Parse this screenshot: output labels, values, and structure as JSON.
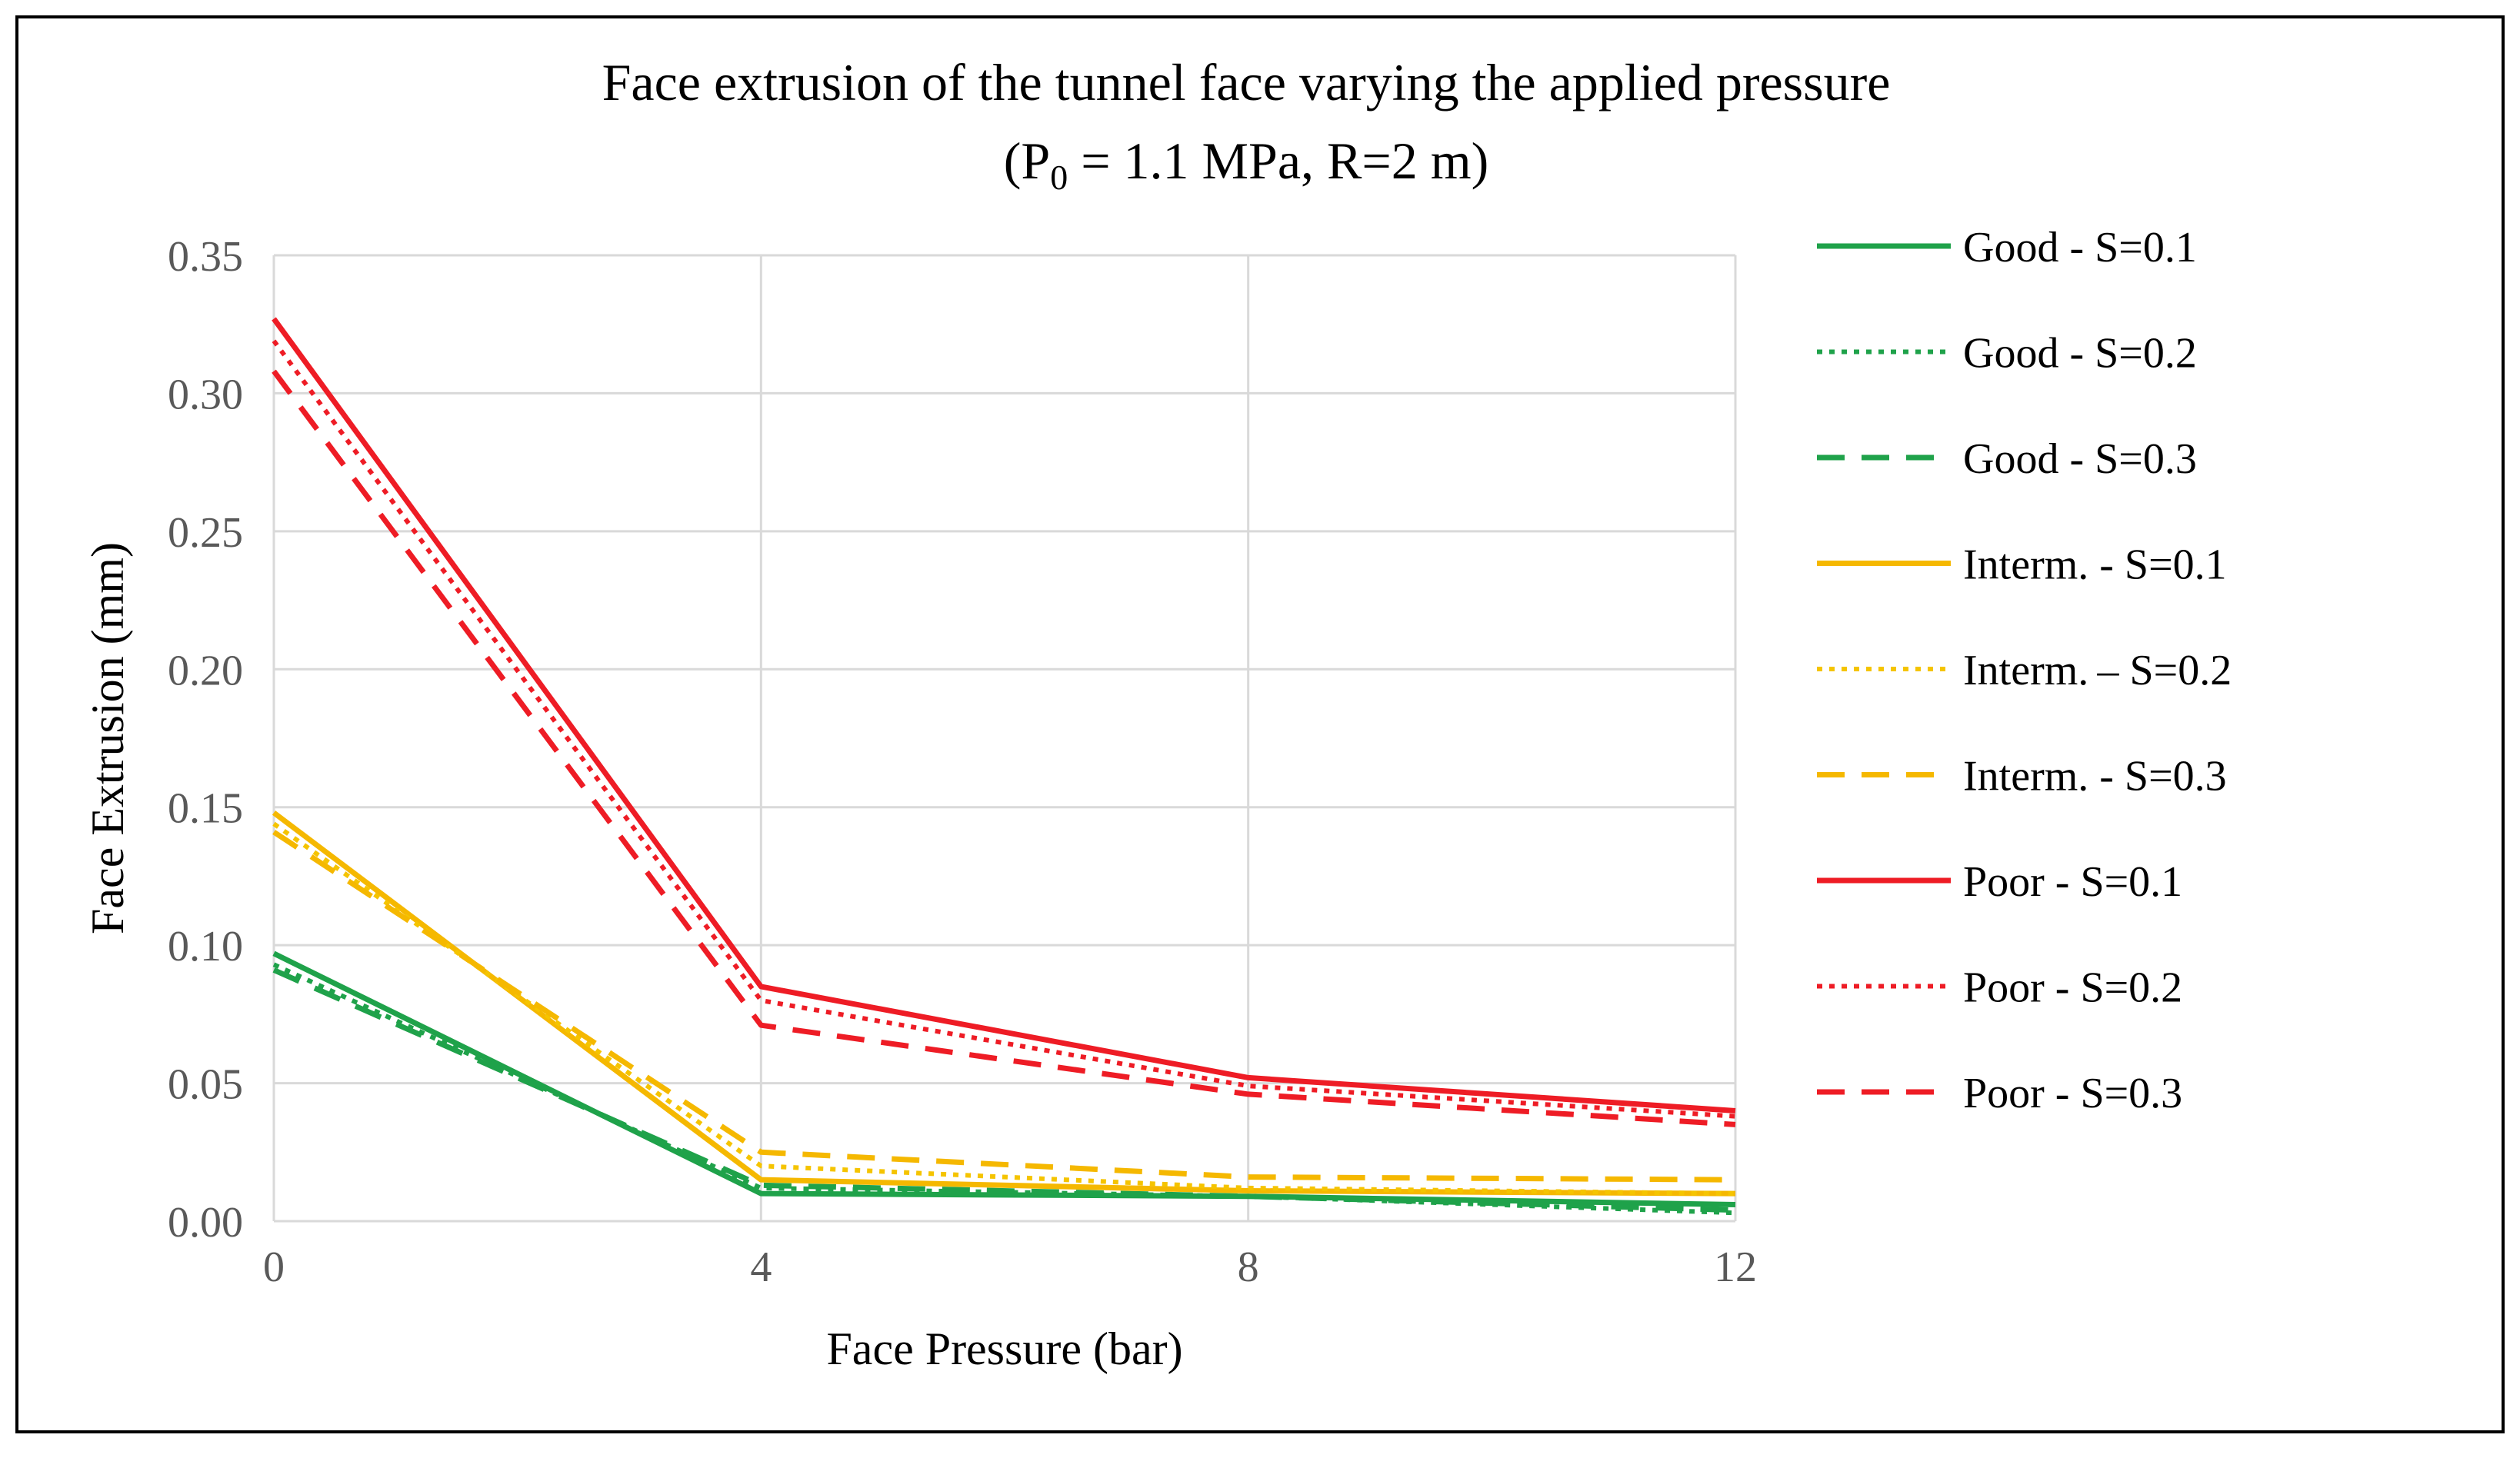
{
  "chart_data": {
    "type": "line",
    "title": "Face extrusion of the tunnel face varying the applied pressure",
    "subtitle": {
      "prefix": "(P",
      "subscript": "0",
      "suffix": " = 1.1 MPa, R=2 m)"
    },
    "xlabel": "Face Pressure (bar)",
    "ylabel": "Face Extrusion (mm)",
    "x": [
      0,
      4,
      8,
      12
    ],
    "x_tick_labels": [
      "0",
      "4",
      "8",
      "12"
    ],
    "y_tick_labels": [
      "0.00",
      "0.05",
      "0.10",
      "0.15",
      "0.20",
      "0.25",
      "0.30",
      "0.35"
    ],
    "ylim": [
      0,
      0.35
    ],
    "xlim": [
      0,
      12
    ],
    "grid": "vertical and horizontal major gridlines",
    "legend_position": "right",
    "series": [
      {
        "name": "Good - S=0.1",
        "color": "#1fa24a",
        "style": "solid",
        "values": [
          0.097,
          0.01,
          0.009,
          0.006
        ]
      },
      {
        "name": "Good - S=0.2",
        "color": "#1fa24a",
        "style": "dotted",
        "values": [
          0.093,
          0.012,
          0.009,
          0.003
        ]
      },
      {
        "name": "Good - S=0.3",
        "color": "#1fa24a",
        "style": "dashed",
        "values": [
          0.091,
          0.013,
          0.009,
          0.004
        ]
      },
      {
        "name": "Interm. - S=0.1",
        "color": "#f5b800",
        "style": "solid",
        "values": [
          0.148,
          0.015,
          0.011,
          0.01
        ]
      },
      {
        "name": "Interm. – S=0.2",
        "color": "#f5c400",
        "style": "dotted",
        "values": [
          0.144,
          0.02,
          0.012,
          0.01
        ]
      },
      {
        "name": "Interm. - S=0.3",
        "color": "#f5b800",
        "style": "dashed",
        "values": [
          0.141,
          0.025,
          0.016,
          0.015
        ]
      },
      {
        "name": "Poor - S=0.1",
        "color": "#ee1c25",
        "style": "solid",
        "values": [
          0.327,
          0.085,
          0.052,
          0.04
        ]
      },
      {
        "name": "Poor - S=0.2",
        "color": "#ee1c25",
        "style": "dotted",
        "values": [
          0.319,
          0.08,
          0.049,
          0.038
        ]
      },
      {
        "name": "Poor - S=0.3",
        "color": "#ee1c25",
        "style": "dashed",
        "values": [
          0.308,
          0.071,
          0.046,
          0.035
        ]
      }
    ]
  }
}
